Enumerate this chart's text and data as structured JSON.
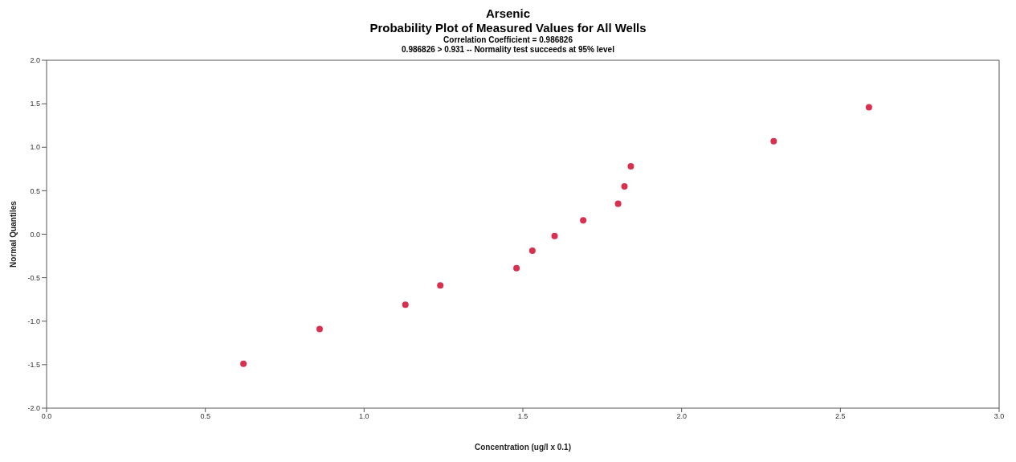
{
  "chart_data": {
    "type": "scatter",
    "title": "Arsenic",
    "subtitle": "Probability Plot of Measured Values for All Wells",
    "annotations": [
      "Correlation Coefficient = 0.986826",
      "0.986826 > 0.931 -- Normality test succeeds at 95% level"
    ],
    "xlabel": "Concentration (ug/l x 0.1)",
    "ylabel": "Normal Quantiles",
    "x": [
      0.62,
      0.86,
      1.13,
      1.24,
      1.48,
      1.53,
      1.6,
      1.69,
      1.8,
      1.82,
      1.84,
      2.29,
      2.59
    ],
    "series": [
      {
        "color": "#d9304f",
        "values": [
          -1.49,
          -1.09,
          -0.81,
          -0.59,
          -0.39,
          -0.19,
          -0.02,
          0.16,
          0.35,
          0.55,
          0.78,
          1.07,
          1.46
        ]
      }
    ],
    "xlim": [
      0.0,
      3.0
    ],
    "xticks": [
      {
        "value": 0,
        "label": "0.0"
      },
      0.5,
      {
        "value": 1,
        "label": "1.0"
      },
      1.5,
      {
        "value": 2,
        "label": "2.0"
      },
      2.5,
      {
        "value": 3,
        "label": "3.0"
      }
    ],
    "ylim": [
      -2.0,
      2.0
    ],
    "yticks": [
      {
        "value": -2,
        "label": "-2.0"
      },
      -1.5,
      {
        "value": -1,
        "label": "-1.0"
      },
      -0.5,
      {
        "value": 0,
        "label": "0.0"
      },
      0.5,
      {
        "value": 1,
        "label": "1.0"
      },
      1.5,
      {
        "value": 2,
        "label": "2.0"
      }
    ],
    "grid": false,
    "legend": false,
    "marker": "circle"
  }
}
